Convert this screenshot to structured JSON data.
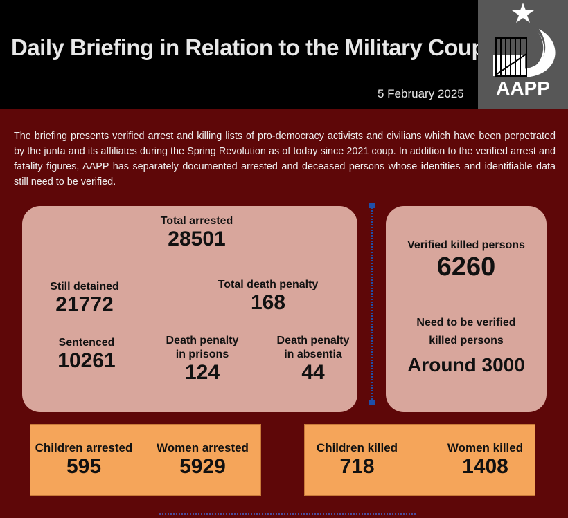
{
  "header": {
    "title": "Daily Briefing in Relation to the Military Coup",
    "date": "5 February 2025",
    "logo_text": "AAPP"
  },
  "intro": "The briefing presents verified arrest and killing lists of pro-democracy activists and civilians which have been perpetrated by the junta and its affiliates during the Spring Revolution as of today since 2021 coup. In addition to the verified arrest and fatality figures, AAPP has separately documented arrested and deceased persons whose identities and identifiable data still need to be verified.",
  "arrests": {
    "total": {
      "label": "Total arrested",
      "value": "28501"
    },
    "detained": {
      "label": "Still detained",
      "value": "21772"
    },
    "death_penalty": {
      "label": "Total death penalty",
      "value": "168"
    },
    "sentenced": {
      "label": "Sentenced",
      "value": "10261"
    },
    "dp_prisons": {
      "label1": "Death penalty",
      "label2": "in prisons",
      "value": "124"
    },
    "dp_absentia": {
      "label1": "Death penalty",
      "label2": "in absentia",
      "value": "44"
    }
  },
  "killed": {
    "verified": {
      "label": "Verified killed persons",
      "value": "6260"
    },
    "unverified": {
      "label1": "Need to be verified",
      "label2": "killed persons",
      "value": "Around 3000"
    }
  },
  "bottom": {
    "children_arrested": {
      "label": "Children arrested",
      "value": "595"
    },
    "women_arrested": {
      "label": "Women arrested",
      "value": "5929"
    },
    "children_killed": {
      "label": "Children killed",
      "value": "718"
    },
    "women_killed": {
      "label": "Women killed",
      "value": "1408"
    }
  }
}
